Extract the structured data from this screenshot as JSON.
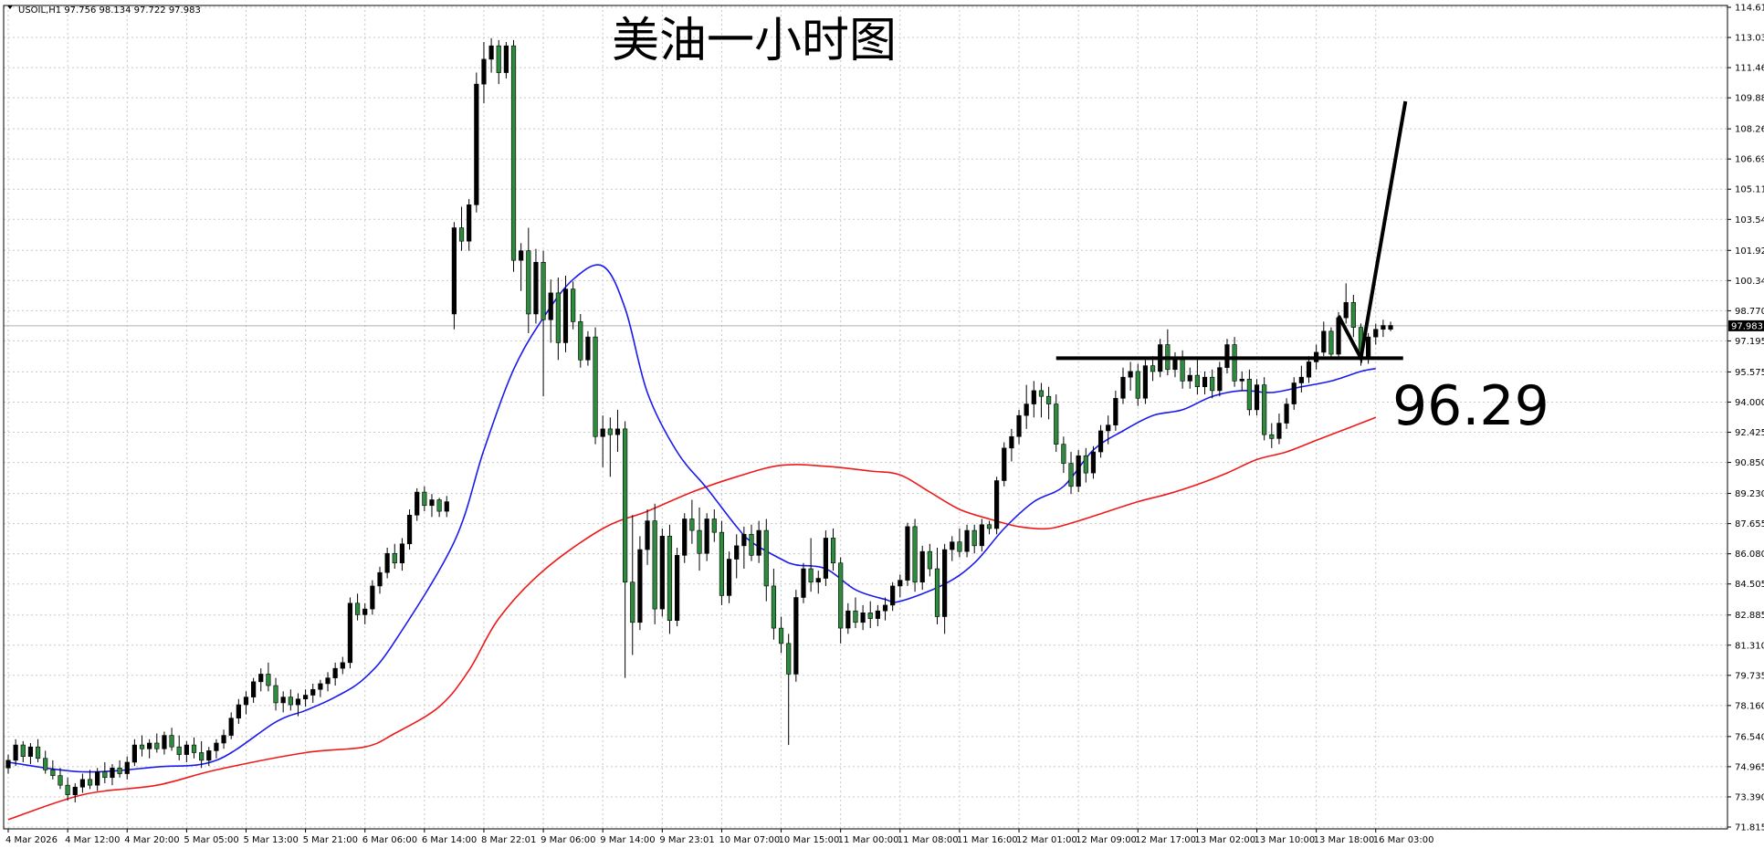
{
  "header": {
    "symbol": "USOIL,H1",
    "ohlc": "97.756 98.134 97.722 97.983"
  },
  "annotations": {
    "title": "美油一小时图",
    "level_text": "96.29"
  },
  "colors": {
    "bull": "#000000",
    "bear": "#2e8b3e",
    "ma_fast": "#1a1aee",
    "ma_slow": "#ee1a1a",
    "grid": "#c8c8c8",
    "annotation": "#000000"
  },
  "chart_data": {
    "type": "candlestick",
    "symbol": "USOIL",
    "timeframe": "H1",
    "ylim": [
      71.815,
      114.61
    ],
    "current_price": 97.983,
    "y_ticks": [
      "114.610",
      "113.035",
      "111.460",
      "109.885",
      "108.265",
      "106.690",
      "105.115",
      "103.540",
      "101.920",
      "100.345",
      "98.770",
      "97.195",
      "95.575",
      "94.000",
      "92.425",
      "90.850",
      "89.230",
      "87.655",
      "86.080",
      "84.505",
      "82.885",
      "81.310",
      "79.735",
      "78.160",
      "76.540",
      "74.965",
      "73.390",
      "71.815"
    ],
    "x_ticks": [
      {
        "i": 0,
        "label": "4 Mar 2026"
      },
      {
        "i": 8,
        "label": "4 Mar 12:00"
      },
      {
        "i": 16,
        "label": "4 Mar 20:00"
      },
      {
        "i": 24,
        "label": "5 Mar 05:00"
      },
      {
        "i": 32,
        "label": "5 Mar 13:00"
      },
      {
        "i": 40,
        "label": "5 Mar 21:00"
      },
      {
        "i": 48,
        "label": "6 Mar 06:00"
      },
      {
        "i": 56,
        "label": "6 Mar 14:00"
      },
      {
        "i": 64,
        "label": "8 Mar 22:01"
      },
      {
        "i": 72,
        "label": "9 Mar 06:00"
      },
      {
        "i": 80,
        "label": "9 Mar 14:00"
      },
      {
        "i": 88,
        "label": "9 Mar 23:01"
      },
      {
        "i": 96,
        "label": "10 Mar 07:00"
      },
      {
        "i": 104,
        "label": "10 Mar 15:00"
      },
      {
        "i": 112,
        "label": "11 Mar 00:00"
      },
      {
        "i": 120,
        "label": "11 Mar 08:00"
      },
      {
        "i": 128,
        "label": "11 Mar 16:00"
      },
      {
        "i": 136,
        "label": "12 Mar 01:00"
      },
      {
        "i": 144,
        "label": "12 Mar 09:00"
      },
      {
        "i": 152,
        "label": "12 Mar 17:00"
      },
      {
        "i": 160,
        "label": "13 Mar 02:00"
      },
      {
        "i": 168,
        "label": "13 Mar 10:00"
      },
      {
        "i": 176,
        "label": "13 Mar 18:00"
      },
      {
        "i": 184,
        "label": "16 Mar 03:00"
      }
    ],
    "candles": [
      [
        74.9,
        75.6,
        74.6,
        75.3
      ],
      [
        75.3,
        76.4,
        75.0,
        76.1
      ],
      [
        76.1,
        76.3,
        75.2,
        75.5
      ],
      [
        75.5,
        76.2,
        75.1,
        76.0
      ],
      [
        76.0,
        76.4,
        75.2,
        75.4
      ],
      [
        75.4,
        75.8,
        74.6,
        74.8
      ],
      [
        74.8,
        75.3,
        74.3,
        74.5
      ],
      [
        74.5,
        74.9,
        73.8,
        74.0
      ],
      [
        74.0,
        74.4,
        73.2,
        73.5
      ],
      [
        73.5,
        74.1,
        73.1,
        73.9
      ],
      [
        73.9,
        74.6,
        73.6,
        74.3
      ],
      [
        74.3,
        74.8,
        73.8,
        74.0
      ],
      [
        74.0,
        74.9,
        73.7,
        74.7
      ],
      [
        74.7,
        75.2,
        74.1,
        74.4
      ],
      [
        74.4,
        75.1,
        74.0,
        74.9
      ],
      [
        74.9,
        75.3,
        74.4,
        74.6
      ],
      [
        74.6,
        75.5,
        74.3,
        75.2
      ],
      [
        75.2,
        76.4,
        75.0,
        76.1
      ],
      [
        76.1,
        76.6,
        75.5,
        75.9
      ],
      [
        75.9,
        76.4,
        75.4,
        76.2
      ],
      [
        76.2,
        76.7,
        75.7,
        75.9
      ],
      [
        75.9,
        76.8,
        75.6,
        76.6
      ],
      [
        76.6,
        77.0,
        75.8,
        76.0
      ],
      [
        76.0,
        76.6,
        75.3,
        75.6
      ],
      [
        75.6,
        76.3,
        75.2,
        76.1
      ],
      [
        76.1,
        76.5,
        75.4,
        75.7
      ],
      [
        75.7,
        76.3,
        74.9,
        75.3
      ],
      [
        75.3,
        76.0,
        75.0,
        75.8
      ],
      [
        75.8,
        76.4,
        75.4,
        76.2
      ],
      [
        76.2,
        76.9,
        75.9,
        76.6
      ],
      [
        76.6,
        77.8,
        76.4,
        77.5
      ],
      [
        77.5,
        78.5,
        77.2,
        78.2
      ],
      [
        78.2,
        78.9,
        77.7,
        78.6
      ],
      [
        78.6,
        79.6,
        78.3,
        79.4
      ],
      [
        79.4,
        80.1,
        78.9,
        79.8
      ],
      [
        79.8,
        80.4,
        78.9,
        79.2
      ],
      [
        79.2,
        79.6,
        77.9,
        78.3
      ],
      [
        78.3,
        78.9,
        77.8,
        78.6
      ],
      [
        78.6,
        79.0,
        77.9,
        78.2
      ],
      [
        78.2,
        78.8,
        77.6,
        78.5
      ],
      [
        78.5,
        79.0,
        78.1,
        78.7
      ],
      [
        78.7,
        79.3,
        78.3,
        79.0
      ],
      [
        79.0,
        79.5,
        78.6,
        79.3
      ],
      [
        79.3,
        79.9,
        78.9,
        79.6
      ],
      [
        79.6,
        80.4,
        79.2,
        80.1
      ],
      [
        80.1,
        80.7,
        79.8,
        80.4
      ],
      [
        80.4,
        83.8,
        80.1,
        83.5
      ],
      [
        83.5,
        84.0,
        82.6,
        82.9
      ],
      [
        82.9,
        83.5,
        82.4,
        83.2
      ],
      [
        83.2,
        84.7,
        82.9,
        84.4
      ],
      [
        84.4,
        85.4,
        84.0,
        85.1
      ],
      [
        85.1,
        86.4,
        84.8,
        86.1
      ],
      [
        86.1,
        86.6,
        85.3,
        85.6
      ],
      [
        85.6,
        86.9,
        85.2,
        86.6
      ],
      [
        86.6,
        88.4,
        86.3,
        88.1
      ],
      [
        88.1,
        89.5,
        87.8,
        89.3
      ],
      [
        89.3,
        89.6,
        88.3,
        88.6
      ],
      [
        88.6,
        89.2,
        88.0,
        88.9
      ],
      [
        88.9,
        89.0,
        88.0,
        88.3
      ],
      [
        88.3,
        89.1,
        88.0,
        88.8
      ],
      [
        98.6,
        103.4,
        97.8,
        103.1
      ],
      [
        103.1,
        104.2,
        101.9,
        102.4
      ],
      [
        102.4,
        104.6,
        101.9,
        104.3
      ],
      [
        104.3,
        111.2,
        103.9,
        110.6
      ],
      [
        110.6,
        112.8,
        109.6,
        111.9
      ],
      [
        111.9,
        113.0,
        111.2,
        112.6
      ],
      [
        112.6,
        112.9,
        110.6,
        111.2
      ],
      [
        111.2,
        112.8,
        110.9,
        112.6
      ],
      [
        112.6,
        112.9,
        100.8,
        101.4
      ],
      [
        101.4,
        102.3,
        99.8,
        101.9
      ],
      [
        101.9,
        103.1,
        97.6,
        98.6
      ],
      [
        98.6,
        102.0,
        98.1,
        101.3
      ],
      [
        101.3,
        101.9,
        94.3,
        98.3
      ],
      [
        98.3,
        100.4,
        97.1,
        99.7
      ],
      [
        99.7,
        100.5,
        96.2,
        97.1
      ],
      [
        97.1,
        100.6,
        96.6,
        99.9
      ],
      [
        99.9,
        100.3,
        97.8,
        98.2
      ],
      [
        98.2,
        98.6,
        95.8,
        96.2
      ],
      [
        96.2,
        97.7,
        95.9,
        97.4
      ],
      [
        97.4,
        97.9,
        91.8,
        92.2
      ],
      [
        92.2,
        93.3,
        90.6,
        92.6
      ],
      [
        92.6,
        93.2,
        90.1,
        92.3
      ],
      [
        92.3,
        93.6,
        91.4,
        92.6
      ],
      [
        92.6,
        93.0,
        79.6,
        84.6
      ],
      [
        84.6,
        88.1,
        80.8,
        82.5
      ],
      [
        82.5,
        87.0,
        82.1,
        86.3
      ],
      [
        86.3,
        88.4,
        85.5,
        87.8
      ],
      [
        87.8,
        88.7,
        82.4,
        83.2
      ],
      [
        83.2,
        87.4,
        82.8,
        87.0
      ],
      [
        87.0,
        87.6,
        81.9,
        82.6
      ],
      [
        82.6,
        86.4,
        82.3,
        86.0
      ],
      [
        86.0,
        88.2,
        85.6,
        87.9
      ],
      [
        87.9,
        88.9,
        86.6,
        87.3
      ],
      [
        87.3,
        88.5,
        85.2,
        86.1
      ],
      [
        86.1,
        88.2,
        85.7,
        87.9
      ],
      [
        87.9,
        88.4,
        86.7,
        87.2
      ],
      [
        87.2,
        87.8,
        83.4,
        83.9
      ],
      [
        83.9,
        86.2,
        83.5,
        85.8
      ],
      [
        85.8,
        87.1,
        84.8,
        86.5
      ],
      [
        86.5,
        87.5,
        85.3,
        87.1
      ],
      [
        87.1,
        87.6,
        85.7,
        86.0
      ],
      [
        86.0,
        87.8,
        85.6,
        87.3
      ],
      [
        87.3,
        87.9,
        83.6,
        84.4
      ],
      [
        84.4,
        85.3,
        81.6,
        82.2
      ],
      [
        82.2,
        82.8,
        80.9,
        81.4
      ],
      [
        81.4,
        81.9,
        76.1,
        79.8
      ],
      [
        79.8,
        84.2,
        79.4,
        83.8
      ],
      [
        83.8,
        85.6,
        83.5,
        85.3
      ],
      [
        85.3,
        86.9,
        84.1,
        84.6
      ],
      [
        84.6,
        85.2,
        84.0,
        84.8
      ],
      [
        84.8,
        87.3,
        84.4,
        86.9
      ],
      [
        86.9,
        87.4,
        85.2,
        85.6
      ],
      [
        85.6,
        85.9,
        81.4,
        82.2
      ],
      [
        82.2,
        83.5,
        81.9,
        83.1
      ],
      [
        83.1,
        83.8,
        82.2,
        82.5
      ],
      [
        82.5,
        83.4,
        82.1,
        83.0
      ],
      [
        83.0,
        83.6,
        82.2,
        82.7
      ],
      [
        82.7,
        83.4,
        82.3,
        83.1
      ],
      [
        83.1,
        83.8,
        82.6,
        83.4
      ],
      [
        83.4,
        84.6,
        83.1,
        84.4
      ],
      [
        84.4,
        85.0,
        83.8,
        84.7
      ],
      [
        84.7,
        87.7,
        84.4,
        87.5
      ],
      [
        87.5,
        87.9,
        84.1,
        84.6
      ],
      [
        84.6,
        86.5,
        84.2,
        86.2
      ],
      [
        86.2,
        86.6,
        84.9,
        85.3
      ],
      [
        85.3,
        86.4,
        82.4,
        82.8
      ],
      [
        82.8,
        86.6,
        81.9,
        86.3
      ],
      [
        86.3,
        87.0,
        85.7,
        86.7
      ],
      [
        86.7,
        87.4,
        85.9,
        86.2
      ],
      [
        86.2,
        87.6,
        85.9,
        87.3
      ],
      [
        87.3,
        87.6,
        86.1,
        86.5
      ],
      [
        86.5,
        87.9,
        86.2,
        87.6
      ],
      [
        87.6,
        87.8,
        87.1,
        87.4
      ],
      [
        87.4,
        90.1,
        87.1,
        89.9
      ],
      [
        89.9,
        91.9,
        89.6,
        91.6
      ],
      [
        91.6,
        92.6,
        90.9,
        92.2
      ],
      [
        92.2,
        93.6,
        91.8,
        93.3
      ],
      [
        93.3,
        94.9,
        92.6,
        93.9
      ],
      [
        93.9,
        95.1,
        93.2,
        94.6
      ],
      [
        94.6,
        95.0,
        93.2,
        94.3
      ],
      [
        94.3,
        94.8,
        93.1,
        93.9
      ],
      [
        93.9,
        94.4,
        91.4,
        91.8
      ],
      [
        91.8,
        92.2,
        90.3,
        90.8
      ],
      [
        90.8,
        91.4,
        89.2,
        89.6
      ],
      [
        89.6,
        91.5,
        89.3,
        91.2
      ],
      [
        91.2,
        91.6,
        89.8,
        90.3
      ],
      [
        90.3,
        91.7,
        90.0,
        91.4
      ],
      [
        91.4,
        92.8,
        91.1,
        92.5
      ],
      [
        92.5,
        93.3,
        91.8,
        92.8
      ],
      [
        92.8,
        94.6,
        92.5,
        94.2
      ],
      [
        94.2,
        95.8,
        93.9,
        95.3
      ],
      [
        95.3,
        96.1,
        94.6,
        95.6
      ],
      [
        95.6,
        96.0,
        93.8,
        94.2
      ],
      [
        94.2,
        96.2,
        93.9,
        95.9
      ],
      [
        95.9,
        96.4,
        95.1,
        95.6
      ],
      [
        95.6,
        97.3,
        95.3,
        97.0
      ],
      [
        97.0,
        97.8,
        95.4,
        95.7
      ],
      [
        95.7,
        96.6,
        95.3,
        96.3
      ],
      [
        96.3,
        96.7,
        94.7,
        95.1
      ],
      [
        95.1,
        95.8,
        94.7,
        95.4
      ],
      [
        95.4,
        96.2,
        94.4,
        94.8
      ],
      [
        94.8,
        95.6,
        94.4,
        95.3
      ],
      [
        95.3,
        95.7,
        94.2,
        94.6
      ],
      [
        94.6,
        96.1,
        94.3,
        95.8
      ],
      [
        95.8,
        97.3,
        95.5,
        97.0
      ],
      [
        97.0,
        97.4,
        94.8,
        95.1
      ],
      [
        95.1,
        95.6,
        94.6,
        95.2
      ],
      [
        95.2,
        95.7,
        93.3,
        93.6
      ],
      [
        93.6,
        95.2,
        93.3,
        94.9
      ],
      [
        94.9,
        95.3,
        92.0,
        92.3
      ],
      [
        92.3,
        92.9,
        91.6,
        92.1
      ],
      [
        92.1,
        93.4,
        91.8,
        92.9
      ],
      [
        92.9,
        94.2,
        92.6,
        93.9
      ],
      [
        93.9,
        95.3,
        93.6,
        95.0
      ],
      [
        95.0,
        95.9,
        94.5,
        95.3
      ],
      [
        95.3,
        96.4,
        95.0,
        96.1
      ],
      [
        96.1,
        97.0,
        95.7,
        96.6
      ],
      [
        96.6,
        98.2,
        96.4,
        97.7
      ],
      [
        97.7,
        97.9,
        96.3,
        96.5
      ],
      [
        96.5,
        98.7,
        96.2,
        98.4
      ],
      [
        98.4,
        100.2,
        98.1,
        99.2
      ],
      [
        99.2,
        99.6,
        97.4,
        97.9
      ],
      [
        97.9,
        98.1,
        95.9,
        96.3
      ],
      [
        96.3,
        97.6,
        96.0,
        97.4
      ],
      [
        97.4,
        98.1,
        97.0,
        97.8
      ],
      [
        97.8,
        98.3,
        97.4,
        98.0
      ],
      [
        97.8,
        98.2,
        97.7,
        98.0
      ]
    ],
    "ma_fast_knots": [
      [
        0,
        75.2
      ],
      [
        10,
        74.7
      ],
      [
        20,
        74.95
      ],
      [
        28,
        75.3
      ],
      [
        36,
        77.3
      ],
      [
        40,
        77.9
      ],
      [
        44,
        78.6
      ],
      [
        48,
        79.6
      ],
      [
        52,
        81.5
      ],
      [
        60,
        86.7
      ],
      [
        64,
        91.5
      ],
      [
        68,
        95.7
      ],
      [
        72,
        98.4
      ],
      [
        76,
        100.4
      ],
      [
        80,
        101.1
      ],
      [
        83,
        98.9
      ],
      [
        86,
        94.5
      ],
      [
        90,
        91.4
      ],
      [
        94,
        89.5
      ],
      [
        98,
        87.5
      ],
      [
        100,
        86.7
      ],
      [
        104,
        85.8
      ],
      [
        106,
        85.5
      ],
      [
        110,
        85.3
      ],
      [
        114,
        84.2
      ],
      [
        118,
        83.7
      ],
      [
        120,
        83.6
      ],
      [
        126,
        84.5
      ],
      [
        130,
        85.6
      ],
      [
        134,
        87.4
      ],
      [
        138,
        88.8
      ],
      [
        142,
        89.6
      ],
      [
        146,
        91.5
      ],
      [
        150,
        92.5
      ],
      [
        154,
        93.3
      ],
      [
        158,
        93.6
      ],
      [
        162,
        94.3
      ],
      [
        166,
        94.6
      ],
      [
        170,
        94.5
      ],
      [
        174,
        94.8
      ],
      [
        178,
        95.1
      ],
      [
        182,
        95.6
      ],
      [
        184,
        95.75
      ]
    ],
    "ma_slow_knots": [
      [
        0,
        72.2
      ],
      [
        10,
        73.5
      ],
      [
        20,
        74.0
      ],
      [
        28,
        74.8
      ],
      [
        40,
        75.7
      ],
      [
        48,
        76.0
      ],
      [
        52,
        76.7
      ],
      [
        58,
        78.1
      ],
      [
        62,
        80.0
      ],
      [
        66,
        82.7
      ],
      [
        72,
        85.2
      ],
      [
        80,
        87.4
      ],
      [
        86,
        88.3
      ],
      [
        92,
        89.3
      ],
      [
        98,
        90.1
      ],
      [
        104,
        90.7
      ],
      [
        110,
        90.65
      ],
      [
        116,
        90.4
      ],
      [
        120,
        90.2
      ],
      [
        124,
        89.3
      ],
      [
        128,
        88.4
      ],
      [
        132,
        87.9
      ],
      [
        136,
        87.5
      ],
      [
        140,
        87.4
      ],
      [
        144,
        87.8
      ],
      [
        148,
        88.3
      ],
      [
        152,
        88.8
      ],
      [
        156,
        89.2
      ],
      [
        160,
        89.7
      ],
      [
        164,
        90.3
      ],
      [
        168,
        91.0
      ],
      [
        172,
        91.4
      ],
      [
        176,
        92.0
      ],
      [
        180,
        92.6
      ],
      [
        184,
        93.2
      ]
    ],
    "support_level": 96.29,
    "resistance_line": {
      "i_start": 141,
      "i_end": 184,
      "price": 96.29
    },
    "projection_path": [
      [
        179,
        98.5
      ],
      [
        182,
        96.3
      ],
      [
        188,
        109.7
      ]
    ]
  }
}
